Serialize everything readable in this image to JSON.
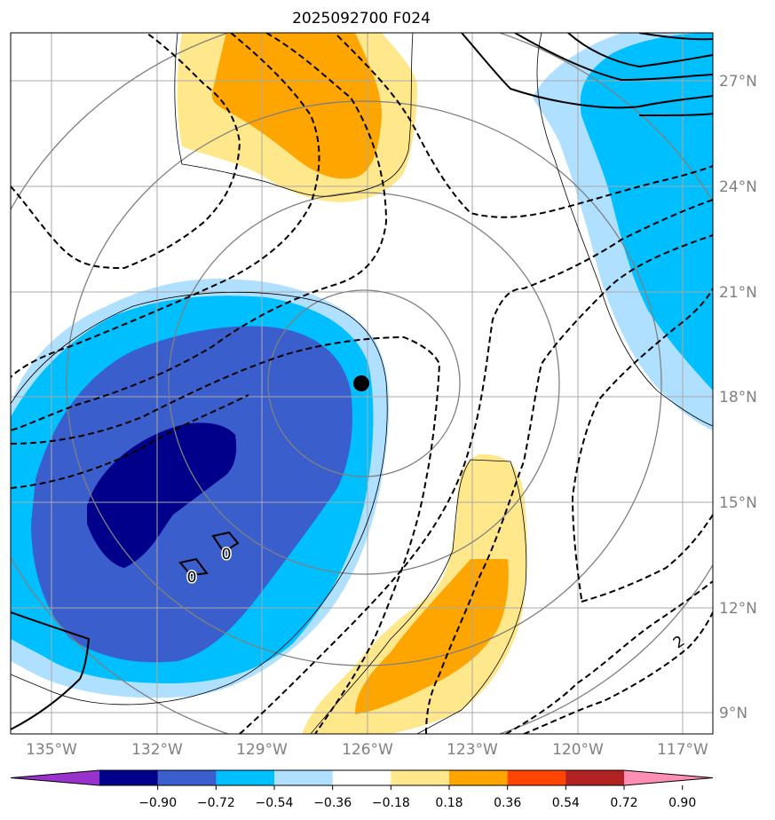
{
  "title": "2025092700 F024",
  "lon_labels": [
    "135°W",
    "132°W",
    "129°W",
    "126°W",
    "123°W",
    "120°W",
    "117°W"
  ],
  "lat_labels": [
    "9°N",
    "12°N",
    "15°N",
    "18°N",
    "21°N",
    "24°N",
    "27°N"
  ],
  "contour_labels": [
    "0",
    "0",
    "2"
  ],
  "colorbar": {
    "ticks": [
      "−0.90",
      "−0.72",
      "−0.54",
      "−0.36",
      "−0.18",
      "0.18",
      "0.36",
      "0.54",
      "0.72",
      "0.90"
    ],
    "colors": [
      "#9932cc",
      "#00008b",
      "#3a5fcd",
      "#00bfff",
      "#b0e0ff",
      "#ffffff",
      "#ffe88c",
      "#ffa500",
      "#ff4500",
      "#b22222",
      "#ff8fb4"
    ]
  },
  "colors": {
    "neg_strong": "#00008b",
    "neg_mid": "#3a5fcd",
    "neg_weak": "#00bfff",
    "neg_faint": "#b0e0ff",
    "pos_faint": "#ffe88c",
    "pos_mid": "#ffa500",
    "grid": "#a9a9a9",
    "circles": "#808080"
  }
}
